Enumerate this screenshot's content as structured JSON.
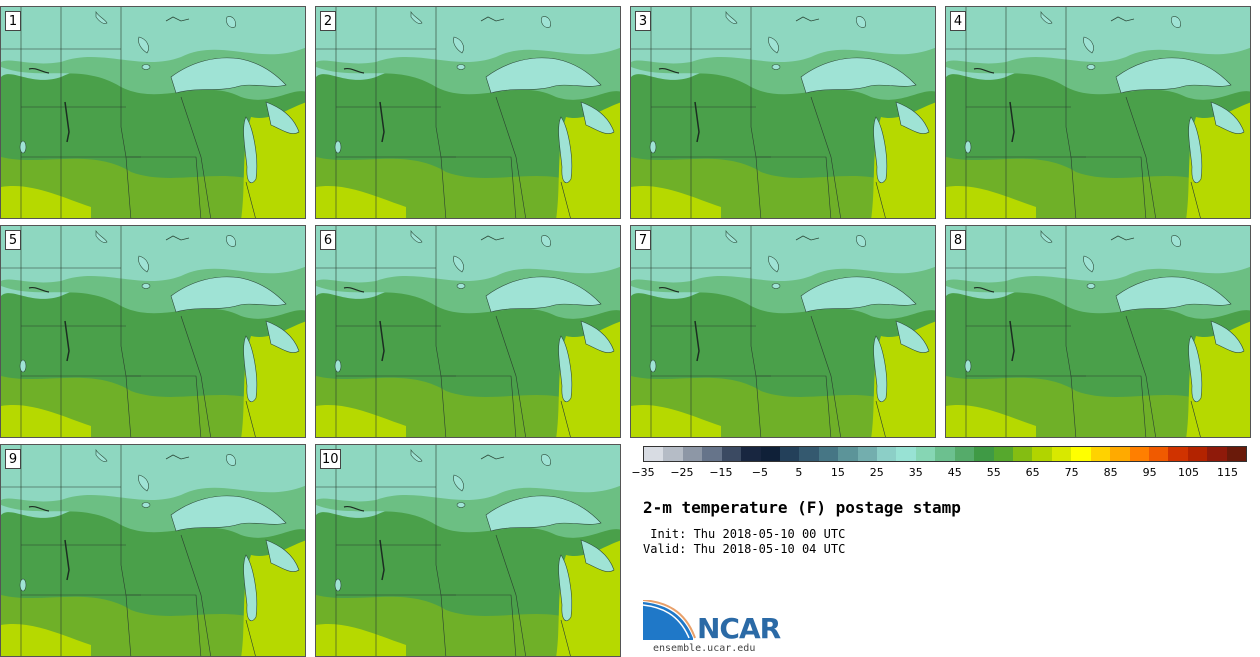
{
  "stamps": [
    {
      "label": "1"
    },
    {
      "label": "2"
    },
    {
      "label": "3"
    },
    {
      "label": "4"
    },
    {
      "label": "5"
    },
    {
      "label": "6"
    },
    {
      "label": "7"
    },
    {
      "label": "8"
    },
    {
      "label": "9"
    },
    {
      "label": "10"
    }
  ],
  "colorbar": {
    "colors": [
      "#d8dce3",
      "#b5bcc6",
      "#8d97a6",
      "#66748a",
      "#3b4a62",
      "#182640",
      "#0f2038",
      "#23405a",
      "#34596f",
      "#467685",
      "#5c9499",
      "#73aeae",
      "#8ccfc7",
      "#98e2d4",
      "#86d6b4",
      "#6cc08f",
      "#55ab6a",
      "#3f9a45",
      "#56a82d",
      "#84bd12",
      "#b1d400",
      "#d8e800",
      "#ffff00",
      "#ffd200",
      "#ffaa00",
      "#ff7f00",
      "#f05a00",
      "#d03300",
      "#b32300",
      "#8f1a0a",
      "#6a1a0a"
    ],
    "tick_labels": [
      "−35",
      "−25",
      "−15",
      "−5",
      "5",
      "15",
      "25",
      "35",
      "45",
      "55",
      "65",
      "75",
      "85",
      "95",
      "105",
      "115"
    ]
  },
  "title": "2-m temperature (F) postage stamp",
  "init_line": " Init: Thu 2018-05-10 00 UTC",
  "valid_line": "Valid: Thu 2018-05-10 04 UTC",
  "logo": {
    "text": "NCAR",
    "site": "ensemble.ucar.edu"
  },
  "map_colors": {
    "north": "#8ed7c0",
    "mid": "#6cbf83",
    "central": "#4aa04a",
    "south": "#6fb028",
    "southeast": "#b6d900",
    "lake": "#9fe3d5"
  }
}
